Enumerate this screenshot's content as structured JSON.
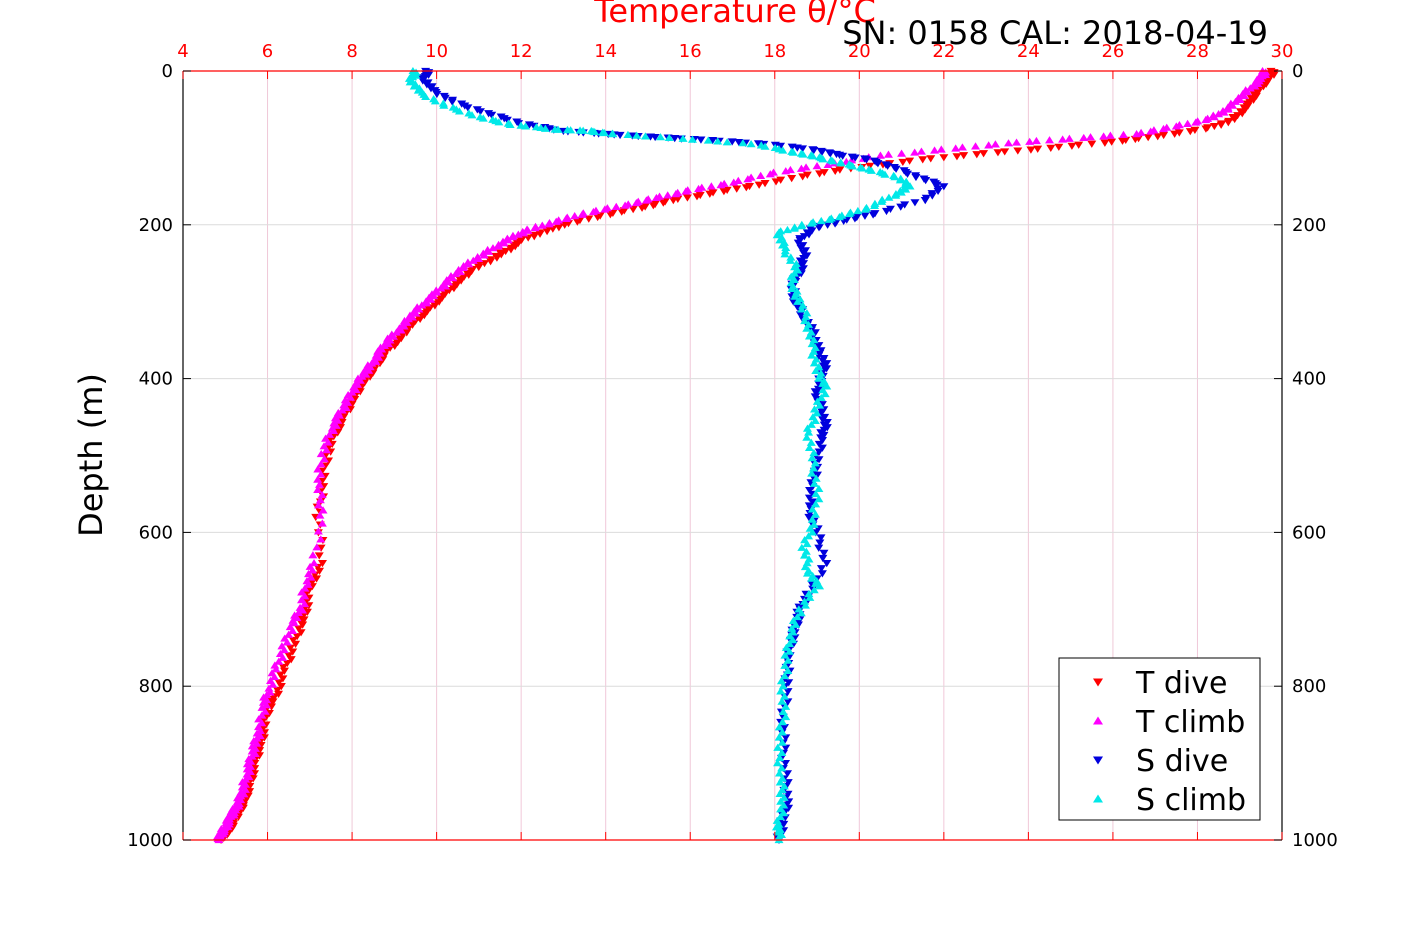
{
  "chart_data": {
    "type": "scatter",
    "title": "Temperature θ/°C",
    "subtitle": "SN: 0158  CAL: 2018-04-19",
    "xlabel": "Temperature θ/°C",
    "ylabel": "Depth (m)",
    "xlim": [
      4,
      30
    ],
    "ylim": [
      0,
      1000
    ],
    "y_reversed": true,
    "x_ticks": [
      4,
      6,
      8,
      10,
      12,
      14,
      16,
      18,
      20,
      22,
      24,
      26,
      28,
      30
    ],
    "x_tick_labels": [
      "4",
      "6",
      "8",
      "10",
      "12",
      "14",
      "16",
      "18",
      "20",
      "22",
      "24",
      "26",
      "28",
      "30"
    ],
    "y_ticks": [
      0,
      200,
      400,
      600,
      800,
      1000
    ],
    "y_tick_labels": [
      "0",
      "200",
      "400",
      "600",
      "800",
      "1000"
    ],
    "grid": true,
    "legend_position": "bottom-right",
    "colors": {
      "axis": "#ff0000",
      "grid_x": "#f0c8d8",
      "grid_y": "#dcdcdc"
    },
    "series": [
      {
        "name": "T dive",
        "color": "#ff0000",
        "marker": "triangle-down",
        "x": [
          29.8,
          29.7,
          29.5,
          29.3,
          29.1,
          28.8,
          28.2,
          27.0,
          26.0,
          24.5,
          23.0,
          21.5,
          20.0,
          18.8,
          17.6,
          16.6,
          15.6,
          14.8,
          13.9,
          13.0,
          12.5,
          12.0,
          11.7,
          11.3,
          10.8,
          10.5,
          10.2,
          9.9,
          9.6,
          9.3,
          9.1,
          8.8,
          8.6,
          8.4,
          8.2,
          8.0,
          7.8,
          7.6,
          7.4,
          7.3,
          7.2,
          7.3,
          7.0,
          6.9,
          6.8,
          6.6,
          6.4,
          6.2,
          6.0,
          5.9,
          5.8,
          5.7,
          5.6,
          5.5,
          5.4,
          5.3,
          5.2,
          5.1,
          5.0,
          4.9
        ],
        "y": [
          0,
          10,
          20,
          35,
          50,
          65,
          75,
          85,
          92,
          100,
          107,
          115,
          125,
          135,
          148,
          158,
          168,
          178,
          188,
          200,
          210,
          220,
          232,
          245,
          260,
          275,
          290,
          305,
          320,
          335,
          350,
          365,
          380,
          395,
          410,
          430,
          450,
          470,
          500,
          540,
          580,
          640,
          670,
          700,
          720,
          750,
          780,
          810,
          830,
          860,
          880,
          900,
          920,
          940,
          955,
          965,
          975,
          985,
          992,
          1000
        ]
      },
      {
        "name": "T climb",
        "color": "#ff00ff",
        "marker": "triangle-up",
        "x": [
          29.6,
          29.5,
          29.3,
          29.0,
          28.7,
          28.3,
          27.5,
          26.5,
          25.0,
          23.5,
          22.0,
          20.5,
          19.2,
          18.0,
          17.0,
          16.0,
          15.2,
          14.4,
          13.5,
          12.8,
          12.2,
          11.8,
          11.4,
          11.0,
          10.6,
          10.3,
          10.0,
          9.7,
          9.4,
          9.2,
          8.9,
          8.7,
          8.5,
          8.3,
          8.1,
          7.9,
          7.7,
          7.5,
          7.3,
          7.2,
          7.3,
          7.1,
          6.9,
          6.8,
          6.6,
          6.4,
          6.2,
          6.0,
          5.9,
          5.8,
          5.7,
          5.6,
          5.5,
          5.4,
          5.3,
          5.2,
          5.1,
          5.0,
          4.9,
          4.85
        ],
        "y": [
          0,
          10,
          20,
          35,
          50,
          62,
          72,
          82,
          88,
          94,
          102,
          110,
          122,
          132,
          145,
          155,
          165,
          175,
          185,
          196,
          206,
          216,
          228,
          242,
          256,
          272,
          288,
          302,
          318,
          332,
          348,
          362,
          378,
          392,
          408,
          428,
          448,
          468,
          498,
          538,
          578,
          640,
          668,
          698,
          718,
          748,
          778,
          808,
          828,
          858,
          878,
          898,
          918,
          938,
          953,
          963,
          973,
          983,
          991,
          1000
        ]
      },
      {
        "name": "S dive",
        "color": "#0000dd",
        "marker": "triangle-down",
        "x": [
          9.8,
          9.7,
          9.9,
          10.4,
          11.2,
          12.0,
          13.0,
          14.0,
          15.2,
          16.5,
          17.8,
          18.9,
          19.4,
          20.2,
          20.8,
          21.4,
          22.0,
          21.5,
          20.4,
          19.6,
          18.9,
          18.6,
          18.7,
          18.6,
          18.4,
          18.5,
          18.7,
          18.9,
          19.0,
          19.2,
          19.1,
          19.0,
          19.1,
          19.2,
          19.1,
          19.0,
          18.9,
          18.8,
          19.0,
          19.2,
          18.8,
          18.6,
          18.5,
          18.4,
          18.3,
          18.3,
          18.2,
          18.2,
          18.25,
          18.3,
          18.2,
          18.1
        ],
        "y": [
          0,
          10,
          25,
          40,
          55,
          68,
          78,
          82,
          86,
          90,
          95,
          102,
          108,
          115,
          125,
          138,
          150,
          168,
          185,
          195,
          205,
          220,
          240,
          260,
          280,
          300,
          320,
          340,
          360,
          380,
          400,
          420,
          440,
          460,
          480,
          510,
          540,
          570,
          600,
          640,
          680,
          700,
          720,
          740,
          770,
          800,
          840,
          880,
          920,
          950,
          975,
          1000
        ]
      },
      {
        "name": "S climb",
        "color": "#00e8e8",
        "marker": "triangle-up",
        "x": [
          9.5,
          9.4,
          9.6,
          10.2,
          11.0,
          11.8,
          12.8,
          13.6,
          14.2,
          15.8,
          17.5,
          18.4,
          19.0,
          19.6,
          20.2,
          20.9,
          21.2,
          20.8,
          20.2,
          19.5,
          18.7,
          18.1,
          18.2,
          18.5,
          18.4,
          18.6,
          18.8,
          18.9,
          19.0,
          19.2,
          19.0,
          18.8,
          18.9,
          19.0,
          18.9,
          18.7,
          18.8,
          19.0,
          18.6,
          18.4,
          18.3,
          18.2,
          18.2,
          18.1,
          18.15,
          18.2,
          18.1,
          18.1
        ],
        "y": [
          0,
          12,
          28,
          45,
          60,
          70,
          76,
          78,
          82,
          88,
          95,
          105,
          112,
          120,
          128,
          138,
          150,
          162,
          178,
          190,
          200,
          210,
          230,
          255,
          280,
          300,
          330,
          360,
          390,
          410,
          440,
          470,
          510,
          550,
          590,
          620,
          650,
          670,
          700,
          730,
          760,
          800,
          840,
          880,
          920,
          950,
          980,
          1000
        ]
      }
    ]
  }
}
